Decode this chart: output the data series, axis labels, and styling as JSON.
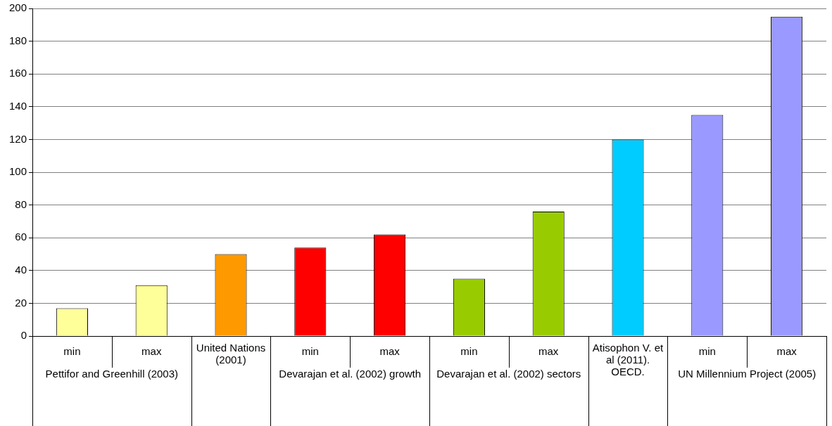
{
  "chart_data": {
    "type": "bar",
    "categories": [
      "min",
      "max",
      null,
      "min",
      "max",
      "min",
      "max",
      null,
      "min",
      "max"
    ],
    "values": [
      17,
      31,
      50,
      54,
      62,
      35,
      76,
      120,
      135,
      195
    ],
    "colors": [
      "#ffff99",
      "#ffff99",
      "#ff9900",
      "#ff0000",
      "#ff0000",
      "#99cc00",
      "#99cc00",
      "#00ccff",
      "#9999ff",
      "#9999ff"
    ],
    "ylim": [
      0,
      200
    ],
    "yticks": [
      0,
      20,
      40,
      60,
      80,
      100,
      120,
      140,
      160,
      180,
      200
    ],
    "grid": "y",
    "legend": false,
    "annotations": [
      "Pettifor and Greenhill (2003)",
      "United Nations (2001)",
      "Devarajan et al. (2002) growth",
      "Devarajan et al. (2002) sectors",
      "Atisophon V. et al (2011). OECD.",
      "UN Millennium Project (2005)"
    ]
  }
}
